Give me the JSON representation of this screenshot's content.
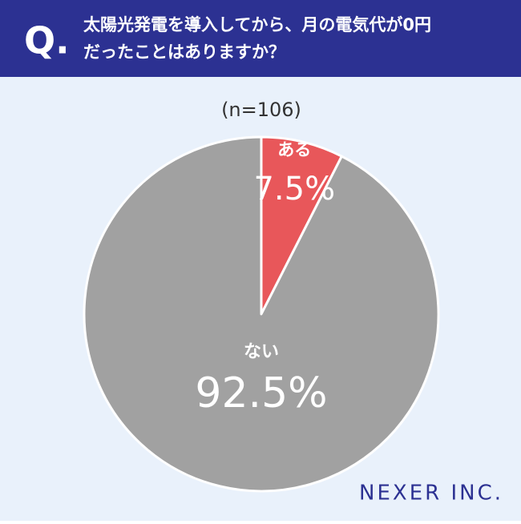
{
  "chart_data": {
    "type": "pie",
    "question_marker": "Q.",
    "title": [
      "太陽光発電を導入してから、月の電気代が0円",
      "だったことはありますか？"
    ],
    "subtitle": "(n=106)",
    "categories": [
      "ある",
      "ない"
    ],
    "values": [
      7.5,
      92.5
    ],
    "value_labels": [
      "7.5%",
      "92.5%"
    ],
    "colors": [
      "#e8575a",
      "#a1a1a1"
    ],
    "source": "NEXER INC."
  }
}
